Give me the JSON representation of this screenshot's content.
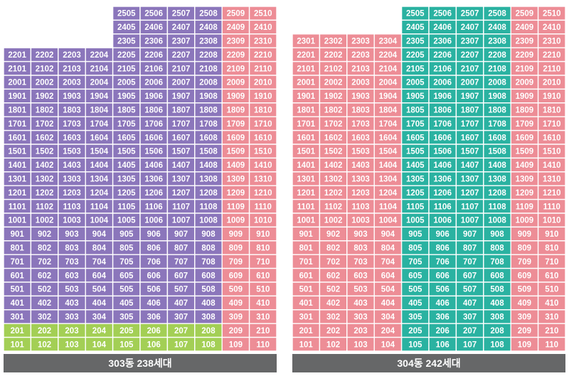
{
  "colors": {
    "purple": "#8b76bb",
    "pink": "#ed8d96",
    "green": "#a3cf55",
    "teal": "#2ab2a1",
    "caption_bg": "#666768",
    "text": "#ffffff"
  },
  "buildings": [
    {
      "caption": "303동 238세대",
      "floors": [
        25,
        24,
        23,
        22,
        21,
        20,
        19,
        18,
        17,
        16,
        15,
        14,
        13,
        12,
        11,
        10,
        9,
        8,
        7,
        6,
        5,
        4,
        3,
        2,
        1
      ],
      "lines": [
        1,
        2,
        3,
        4,
        5,
        6,
        7,
        8,
        9,
        10
      ],
      "groups": [
        {
          "lines": [
            1,
            2,
            3,
            4
          ],
          "top_floor": 22,
          "color": "purple",
          "alt_color": "green",
          "alt_floors": [
            1,
            2
          ]
        },
        {
          "lines": [
            5,
            6,
            7,
            8
          ],
          "top_floor": 25,
          "color": "purple",
          "alt_color": "green",
          "alt_floors": [
            1,
            2
          ]
        },
        {
          "lines": [
            9,
            10
          ],
          "top_floor": 25,
          "color": "pink"
        }
      ]
    },
    {
      "caption": "304동 242세대",
      "floors": [
        25,
        24,
        23,
        22,
        21,
        20,
        19,
        18,
        17,
        16,
        15,
        14,
        13,
        12,
        11,
        10,
        9,
        8,
        7,
        6,
        5,
        4,
        3,
        2,
        1
      ],
      "lines": [
        1,
        2,
        3,
        4,
        5,
        6,
        7,
        8,
        9,
        10
      ],
      "groups": [
        {
          "lines": [
            1,
            2,
            3,
            4
          ],
          "top_floor": 23,
          "color": "pink"
        },
        {
          "lines": [
            5,
            6,
            7,
            8
          ],
          "top_floor": 25,
          "color": "teal"
        },
        {
          "lines": [
            9,
            10
          ],
          "top_floor": 25,
          "color": "pink"
        }
      ]
    }
  ]
}
